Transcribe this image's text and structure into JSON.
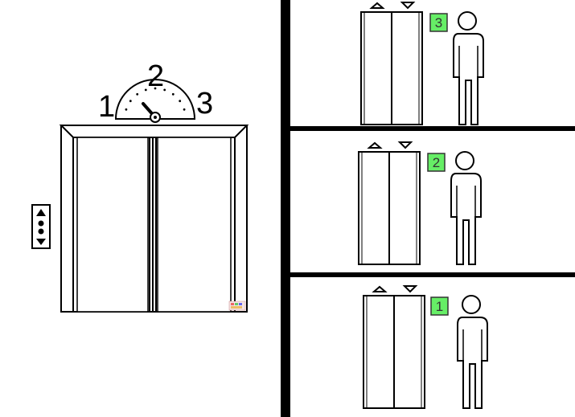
{
  "dial": {
    "labels": [
      "1",
      "2",
      "3"
    ],
    "current_floor": 1
  },
  "call_panel": {
    "up_icon": "triangle-up-icon",
    "down_icon": "triangle-down-icon"
  },
  "panels": [
    {
      "floor_label": "3",
      "indicator_color": "#66ee66"
    },
    {
      "floor_label": "2",
      "indicator_color": "#66ee66"
    },
    {
      "floor_label": "1",
      "indicator_color": "#66ee66"
    }
  ],
  "colors": {
    "divider": "#000000",
    "indicator_green": "#66ee66"
  }
}
